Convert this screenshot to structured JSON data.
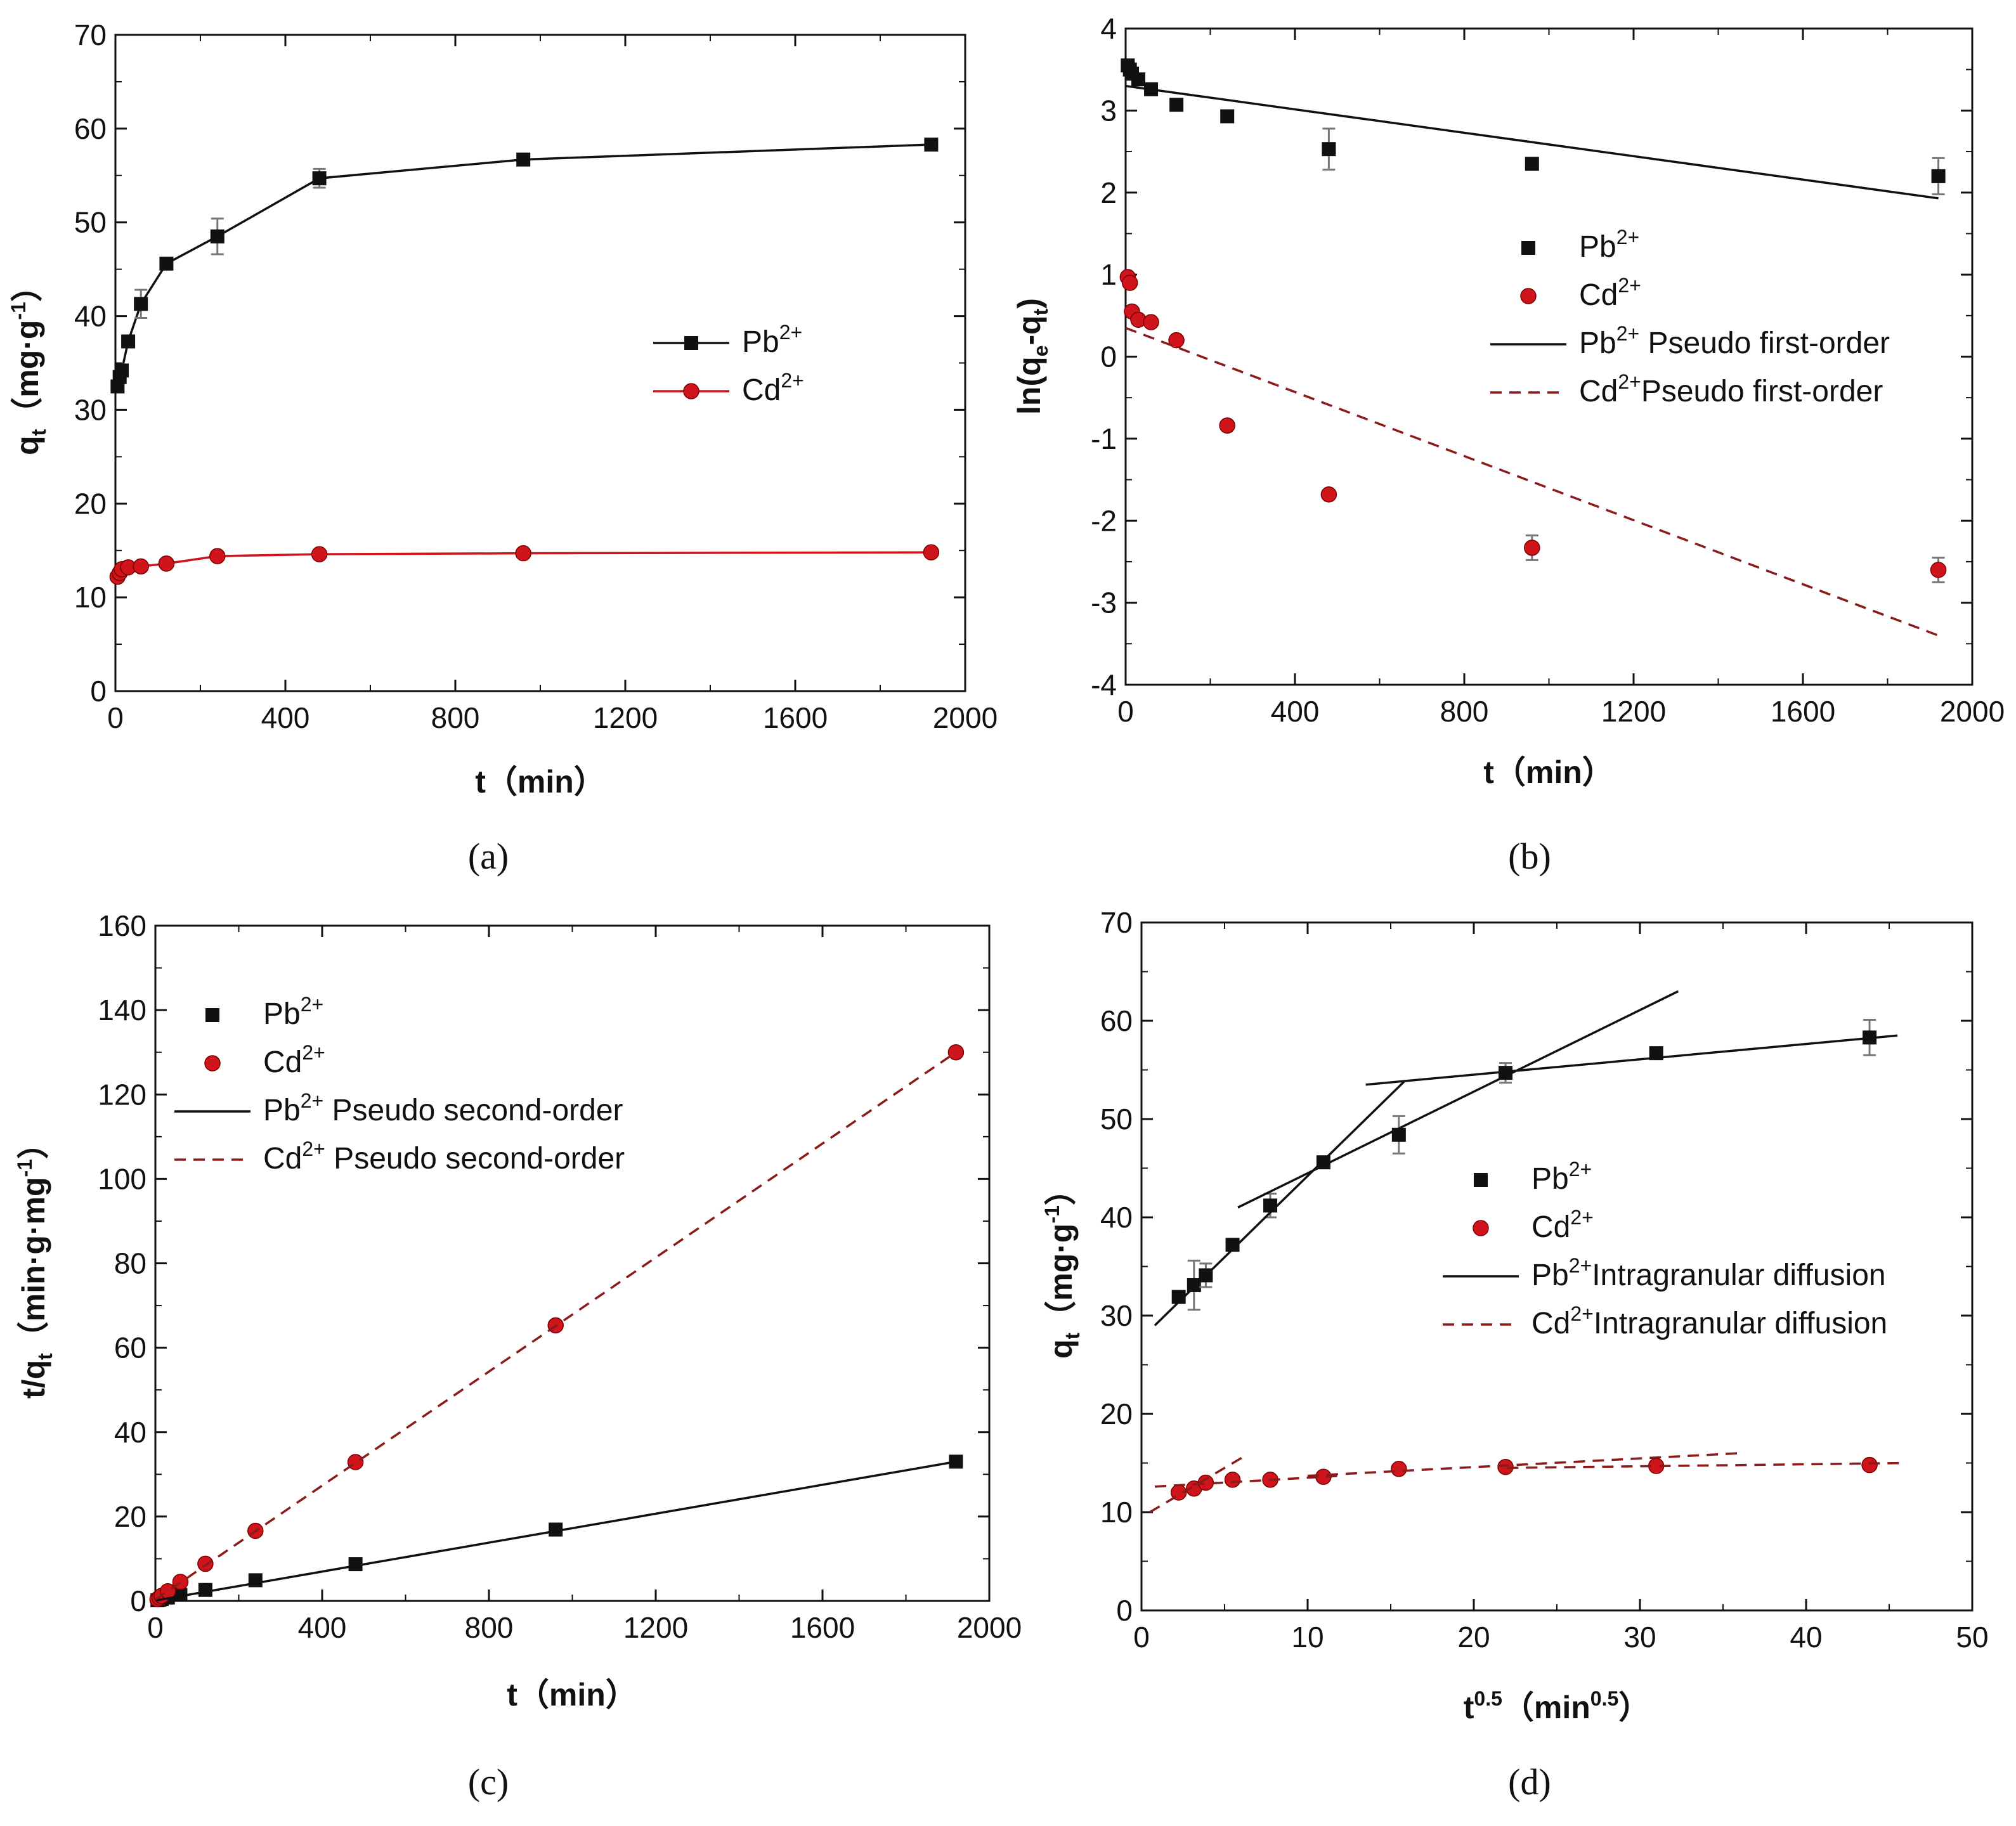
{
  "figure": {
    "panels": [
      "(a)",
      "(b)",
      "(c)",
      "(d)"
    ]
  },
  "colors": {
    "pb": "#111111",
    "cd": "#d0141b",
    "cd_fit": "#8b1a1a",
    "errorbar": "#777777"
  },
  "chart_data": [
    {
      "id": "a",
      "caption": "(a)",
      "type": "line",
      "xlabel": "t（min）",
      "ylabel": "q_t（mg·g⁻¹）",
      "xlim": [
        0,
        2000
      ],
      "ylim": [
        0,
        70
      ],
      "xticks": [
        0,
        400,
        800,
        1200,
        1600,
        2000
      ],
      "yticks": [
        0,
        10,
        20,
        30,
        40,
        50,
        60,
        70
      ],
      "legend_position": "center-right",
      "series": [
        {
          "name": "Pb2+",
          "label_base": "Pb",
          "label_sup": "2+",
          "color": "#111111",
          "marker": "square",
          "style": "solid",
          "kind": "line-markers",
          "x": [
            5,
            10,
            15,
            30,
            60,
            120,
            240,
            480,
            960,
            1920
          ],
          "y": [
            32.5,
            33.5,
            34.2,
            37.3,
            41.3,
            45.6,
            48.5,
            54.7,
            56.7,
            58.3
          ],
          "err": [
            0,
            0,
            0,
            0,
            1.5,
            0.5,
            1.9,
            1.0,
            0.6,
            0.4
          ]
        },
        {
          "name": "Cd2+",
          "label_base": "Cd",
          "label_sup": "2+",
          "color": "#d0141b",
          "marker": "circle",
          "style": "solid",
          "kind": "line-markers",
          "x": [
            5,
            10,
            15,
            30,
            60,
            120,
            240,
            480,
            960,
            1920
          ],
          "y": [
            12.2,
            12.6,
            13.0,
            13.2,
            13.3,
            13.6,
            14.4,
            14.6,
            14.7,
            14.8
          ],
          "err": [
            0,
            0,
            0,
            0,
            0,
            0,
            0,
            0,
            0,
            0
          ]
        }
      ]
    },
    {
      "id": "b",
      "caption": "(b)",
      "type": "scatter",
      "xlabel": "t（min）",
      "ylabel": "ln(q_e-q_t)",
      "xlim": [
        0,
        2000
      ],
      "ylim": [
        -4,
        4
      ],
      "xticks": [
        0,
        400,
        800,
        1200,
        1600,
        2000
      ],
      "yticks": [
        -4,
        -3,
        -2,
        -1,
        0,
        1,
        2,
        3,
        4
      ],
      "legend_position": "center-right",
      "series": [
        {
          "name": "Pb2+",
          "label_base": "Pb",
          "label_sup": "2+",
          "color": "#111111",
          "marker": "square",
          "kind": "markers",
          "x": [
            5,
            10,
            15,
            30,
            60,
            120,
            240,
            480,
            960,
            1920
          ],
          "y": [
            3.55,
            3.5,
            3.45,
            3.38,
            3.26,
            3.07,
            2.93,
            2.53,
            2.35,
            2.2
          ],
          "err": [
            0,
            0,
            0,
            0,
            0,
            0,
            0,
            0.25,
            0,
            0.22
          ]
        },
        {
          "name": "Cd2+",
          "label_base": "Cd",
          "label_sup": "2+",
          "color": "#d0141b",
          "marker": "circle",
          "kind": "markers",
          "x": [
            5,
            10,
            15,
            30,
            60,
            120,
            240,
            480,
            960,
            1920
          ],
          "y": [
            0.97,
            0.9,
            0.55,
            0.45,
            0.42,
            0.2,
            -0.84,
            -1.68,
            -2.33,
            -2.6
          ],
          "err": [
            0,
            0,
            0,
            0,
            0,
            0,
            0,
            0,
            0.15,
            0.15
          ]
        },
        {
          "name": "Pb2+ Pseudo first-order",
          "label_base": "Pb",
          "label_sup": "2+",
          "label_rest": " Pseudo first-order",
          "color": "#111111",
          "style": "solid",
          "kind": "line",
          "x": [
            0,
            1920
          ],
          "y": [
            3.3,
            1.93
          ]
        },
        {
          "name": "Cd2+Pseudo first-order",
          "label_base": "Cd",
          "label_sup": "2+",
          "label_rest": "Pseudo first-order",
          "color": "#8b1a1a",
          "style": "dashed",
          "kind": "line",
          "x": [
            0,
            1920
          ],
          "y": [
            0.35,
            -3.4
          ]
        }
      ]
    },
    {
      "id": "c",
      "caption": "(c)",
      "type": "scatter",
      "xlabel": "t（min）",
      "ylabel": "t/q_t（min·g·mg⁻¹）",
      "xlim": [
        0,
        2000
      ],
      "ylim": [
        0,
        160
      ],
      "xticks": [
        0,
        400,
        800,
        1200,
        1600,
        2000
      ],
      "yticks": [
        0,
        20,
        40,
        60,
        80,
        100,
        120,
        140,
        160
      ],
      "legend_position": "top-left",
      "series": [
        {
          "name": "Pb2+",
          "label_base": "Pb",
          "label_sup": "2+",
          "color": "#111111",
          "marker": "square",
          "kind": "markers",
          "x": [
            5,
            10,
            15,
            30,
            60,
            120,
            240,
            480,
            960,
            1920
          ],
          "y": [
            0.15,
            0.3,
            0.44,
            0.8,
            1.45,
            2.6,
            4.9,
            8.7,
            16.9,
            33.0
          ],
          "err": [
            0,
            0,
            0,
            0,
            0,
            0,
            0,
            0,
            0,
            0
          ]
        },
        {
          "name": "Cd2+",
          "label_base": "Cd",
          "label_sup": "2+",
          "color": "#d0141b",
          "marker": "circle",
          "kind": "markers",
          "x": [
            5,
            10,
            15,
            30,
            60,
            120,
            240,
            480,
            960,
            1920
          ],
          "y": [
            0.4,
            0.8,
            1.2,
            2.3,
            4.5,
            8.8,
            16.6,
            32.9,
            65.3,
            130.0
          ],
          "err": [
            0,
            0,
            0,
            0,
            0,
            0,
            0,
            0,
            0,
            0
          ]
        },
        {
          "name": "Pb2+ Pseudo second-order",
          "label_base": "Pb",
          "label_sup": "2+",
          "label_rest": " Pseudo second-order",
          "color": "#111111",
          "style": "solid",
          "kind": "line",
          "x": [
            0,
            1920
          ],
          "y": [
            0.1,
            33.0
          ]
        },
        {
          "name": "Cd2+ Pseudo second-order",
          "label_base": "Cd",
          "label_sup": "2+",
          "label_rest": " Pseudo second-order",
          "color": "#8b1a1a",
          "style": "dashed",
          "kind": "line",
          "x": [
            0,
            1920
          ],
          "y": [
            0.3,
            130.0
          ]
        }
      ]
    },
    {
      "id": "d",
      "caption": "(d)",
      "type": "scatter",
      "xlabel": "t^0.5（min^0.5）",
      "ylabel": "q_t（mg·g⁻¹）",
      "xlim": [
        0,
        50
      ],
      "ylim": [
        0,
        70
      ],
      "xticks": [
        0,
        10,
        20,
        30,
        40,
        50
      ],
      "yticks": [
        0,
        10,
        20,
        30,
        40,
        50,
        60,
        70
      ],
      "legend_position": "center-right",
      "series": [
        {
          "name": "Pb2+",
          "label_base": "Pb",
          "label_sup": "2+",
          "color": "#111111",
          "marker": "square",
          "kind": "markers",
          "x": [
            2.24,
            3.16,
            3.87,
            5.48,
            7.75,
            10.95,
            15.49,
            21.91,
            30.98,
            43.82
          ],
          "y": [
            31.9,
            33.1,
            34.1,
            37.2,
            41.2,
            45.6,
            48.4,
            54.7,
            56.7,
            58.3
          ],
          "err": [
            0,
            2.5,
            1.2,
            0,
            1.2,
            0,
            1.9,
            1.0,
            0,
            1.8
          ]
        },
        {
          "name": "Cd2+",
          "label_base": "Cd",
          "label_sup": "2+",
          "color": "#d0141b",
          "marker": "circle",
          "kind": "markers",
          "x": [
            2.24,
            3.16,
            3.87,
            5.48,
            7.75,
            10.95,
            15.49,
            21.91,
            30.98,
            43.82
          ],
          "y": [
            12.0,
            12.4,
            13.0,
            13.3,
            13.3,
            13.6,
            14.4,
            14.6,
            14.7,
            14.8
          ],
          "err": [
            0,
            0,
            0,
            0,
            0,
            0,
            0,
            0,
            0,
            0
          ]
        },
        {
          "name": "Pb2+Intragranular diffusion",
          "label_base": "Pb",
          "label_sup": "2+",
          "label_rest": "Intragranular diffusion",
          "color": "#111111",
          "style": "solid",
          "kind": "segments",
          "segments": [
            {
              "x": [
                0.8,
                15.8
              ],
              "y": [
                29.0,
                53.8
              ]
            },
            {
              "x": [
                5.8,
                32.3
              ],
              "y": [
                41.0,
                63.0
              ]
            },
            {
              "x": [
                13.5,
                45.5
              ],
              "y": [
                53.5,
                58.5
              ]
            }
          ]
        },
        {
          "name": "Cd2+Intragranular diffusion",
          "label_base": "Cd",
          "label_sup": "2+",
          "label_rest": "Intragranular diffusion",
          "color": "#8b1a1a",
          "style": "dashed",
          "kind": "segments",
          "segments": [
            {
              "x": [
                0.5,
                6.3
              ],
              "y": [
                10.0,
                15.8
              ]
            },
            {
              "x": [
                0.8,
                12.0
              ],
              "y": [
                12.6,
                13.7
              ]
            },
            {
              "x": [
                10.0,
                36.0
              ],
              "y": [
                13.7,
                16.0
              ]
            },
            {
              "x": [
                22.0,
                46.0
              ],
              "y": [
                14.5,
                15.0
              ]
            }
          ]
        }
      ]
    }
  ]
}
